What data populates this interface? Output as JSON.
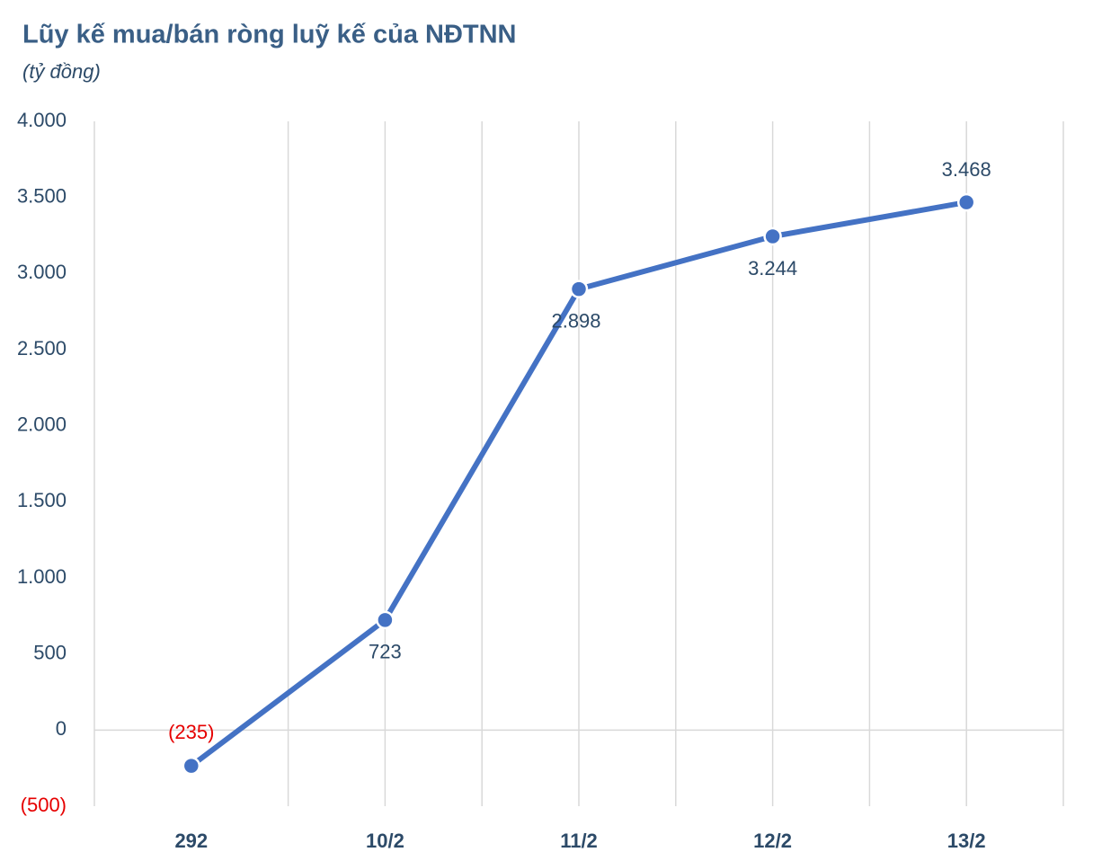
{
  "chart_data": {
    "type": "line",
    "title": "Lũy kế mua/bán ròng luỹ kế của NĐTNN",
    "subtitle": "(tỷ đồng)",
    "categories": [
      "292",
      "10/2",
      "11/2",
      "12/2",
      "13/2"
    ],
    "values": [
      -235,
      723,
      2898,
      3244,
      3468
    ],
    "value_labels": [
      "(235)",
      "723",
      "2.898",
      "3.244",
      "3.468"
    ],
    "color": "#4472c4",
    "negative_color": "#e60000",
    "ylim": [
      -500,
      4000
    ],
    "yticks": [
      {
        "value": -500,
        "label": "(500)"
      },
      0,
      500,
      {
        "value": 1000,
        "label": "1.000"
      },
      {
        "value": 1500,
        "label": "1.500"
      },
      {
        "value": 2000,
        "label": "2.000"
      },
      {
        "value": 2500,
        "label": "2.500"
      },
      {
        "value": 3000,
        "label": "3.000"
      },
      {
        "value": 3500,
        "label": "3.500"
      },
      {
        "value": 4000,
        "label": "4.000"
      }
    ],
    "grid": true
  }
}
